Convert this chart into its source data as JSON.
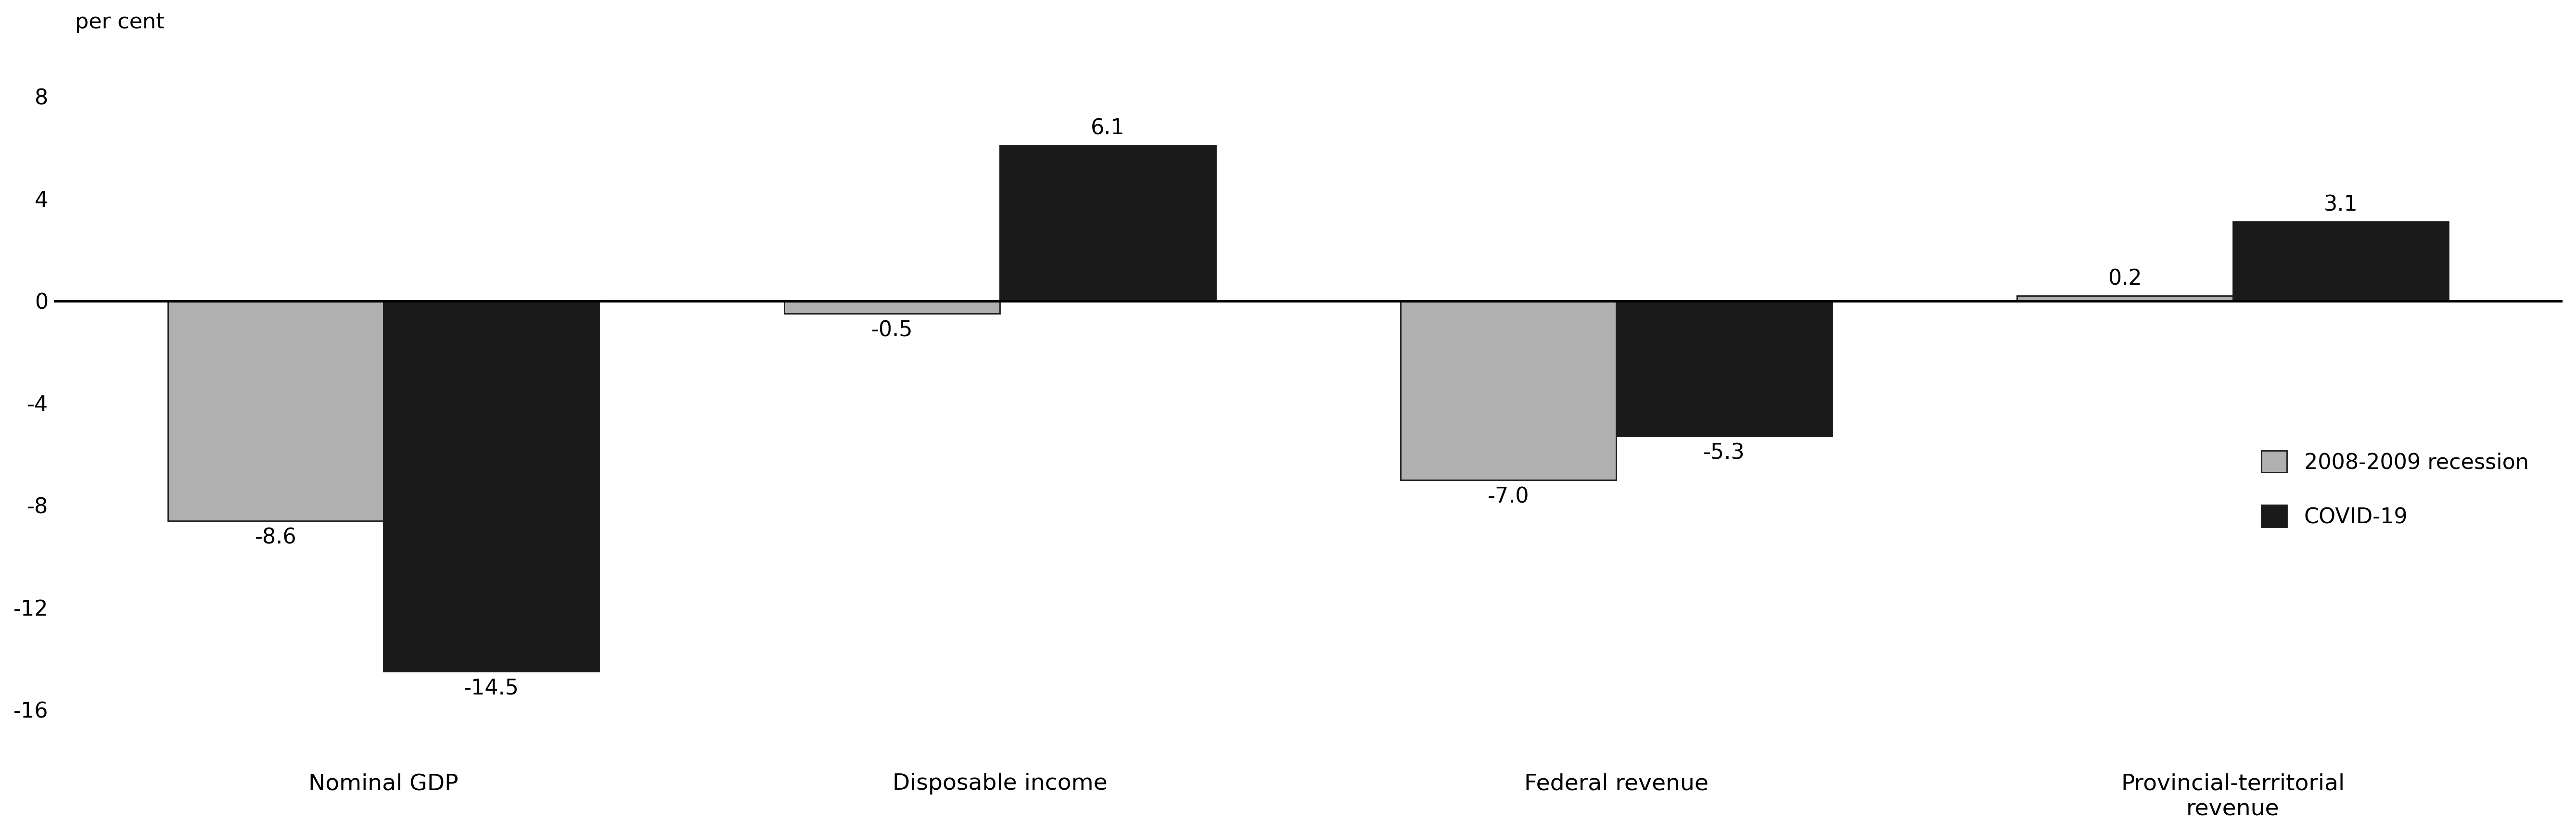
{
  "categories": [
    "Nominal GDP",
    "Disposable income",
    "Federal revenue",
    "Provincial-territorial\nrevenue"
  ],
  "recession_values": [
    -8.6,
    -0.5,
    -7.0,
    0.2
  ],
  "covid_values": [
    -14.5,
    6.1,
    -5.3,
    3.1
  ],
  "recession_color": "#b0b0b0",
  "covid_color": "#1a1a1a",
  "bar_edge_color": "#1a1a1a",
  "ylabel": "per cent",
  "ylim": [
    -18,
    10
  ],
  "yticks": [
    -16,
    -12,
    -8,
    -4,
    0,
    4,
    8
  ],
  "legend_labels": [
    "2008-2009 recession",
    "COVID-19"
  ],
  "bar_width": 0.35,
  "background_color": "#ffffff",
  "tick_fontsize": 32,
  "annotation_fontsize": 32,
  "legend_fontsize": 32,
  "xlabel_fontsize": 34,
  "ylabel_fontsize": 32
}
